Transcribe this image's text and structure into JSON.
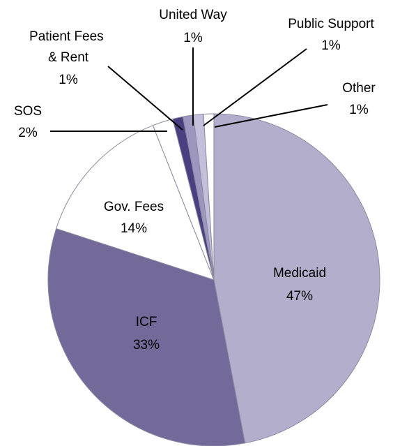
{
  "chart_data": {
    "type": "pie",
    "categories": [
      "Medicaid",
      "ICF",
      "Gov. Fees",
      "SOS",
      "Patient Fees & Rent",
      "United Way",
      "Public Support",
      "Other"
    ],
    "values": [
      47,
      33,
      14,
      2,
      1,
      1,
      1,
      1
    ],
    "value_labels": [
      "47%",
      "33%",
      "14%",
      "2%",
      "1%",
      "1%",
      "1%",
      "1%"
    ],
    "colors": [
      "#b3aecb",
      "#736a9a",
      "#ffffff",
      "#ffffff",
      "#4a3f80",
      "#9d97bf",
      "#c3bfda",
      "#ffffff"
    ]
  }
}
